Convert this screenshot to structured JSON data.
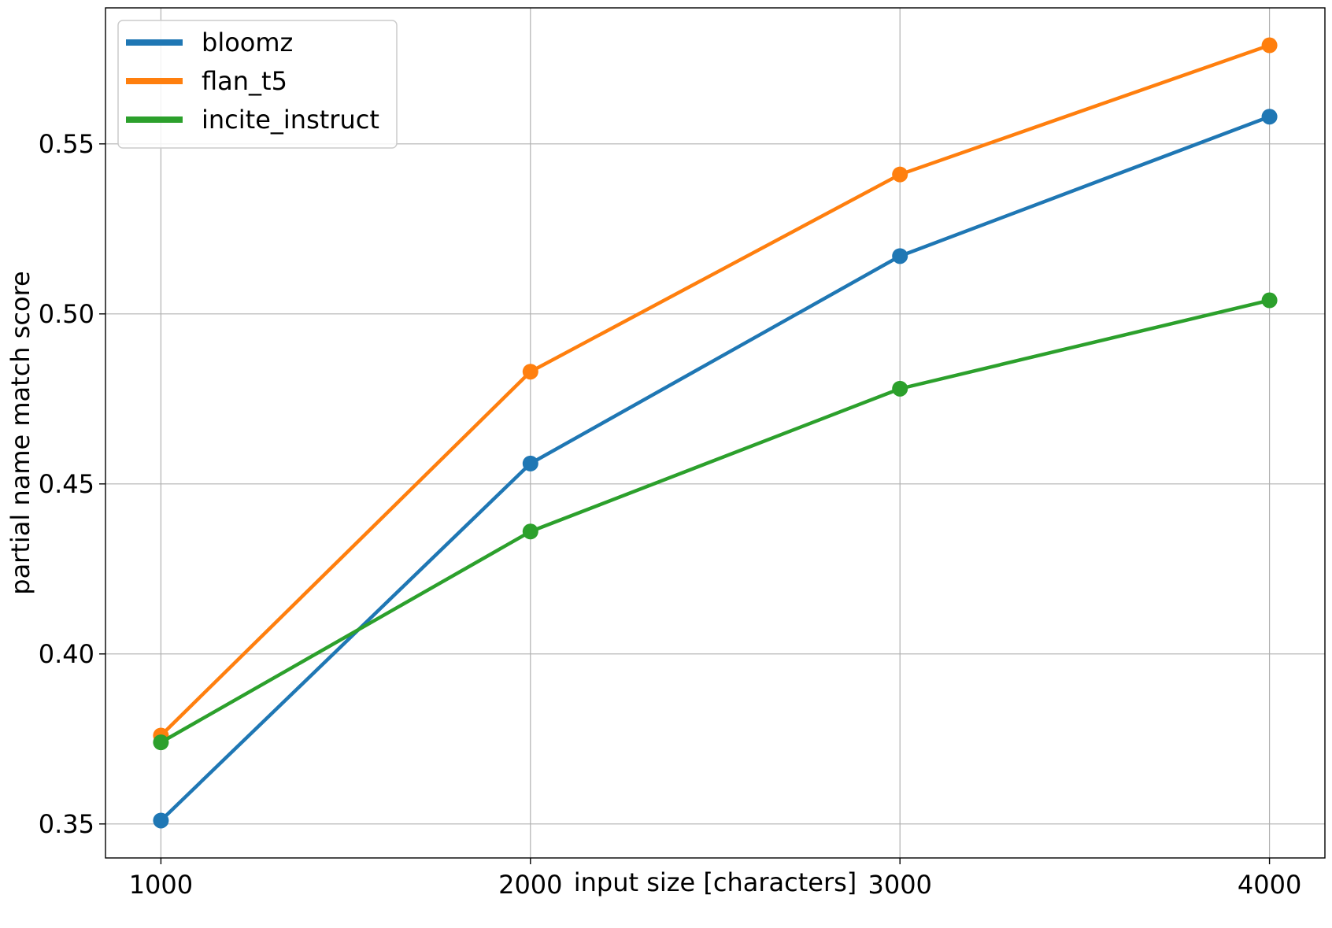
{
  "chart_data": {
    "type": "line",
    "title": "",
    "xlabel": "input size [characters]",
    "ylabel": "partial name match score",
    "x": [
      1000,
      2000,
      3000,
      4000
    ],
    "xlim": [
      850,
      4150
    ],
    "ylim": [
      0.34,
      0.59
    ],
    "xticks": [
      1000,
      2000,
      3000,
      4000
    ],
    "yticks": [
      0.35,
      0.4,
      0.45,
      0.5,
      0.55
    ],
    "ytick_labels": [
      "0.35",
      "0.40",
      "0.45",
      "0.50",
      "0.55"
    ],
    "grid": true,
    "legend_position": "top-left",
    "series": [
      {
        "name": "bloomz",
        "color": "#1f77b4",
        "values": [
          0.351,
          0.456,
          0.517,
          0.558
        ]
      },
      {
        "name": "flan_t5",
        "color": "#ff7f0e",
        "values": [
          0.376,
          0.483,
          0.541,
          0.579
        ]
      },
      {
        "name": "incite_instruct",
        "color": "#2ca02c",
        "values": [
          0.374,
          0.436,
          0.478,
          0.504
        ]
      }
    ]
  }
}
